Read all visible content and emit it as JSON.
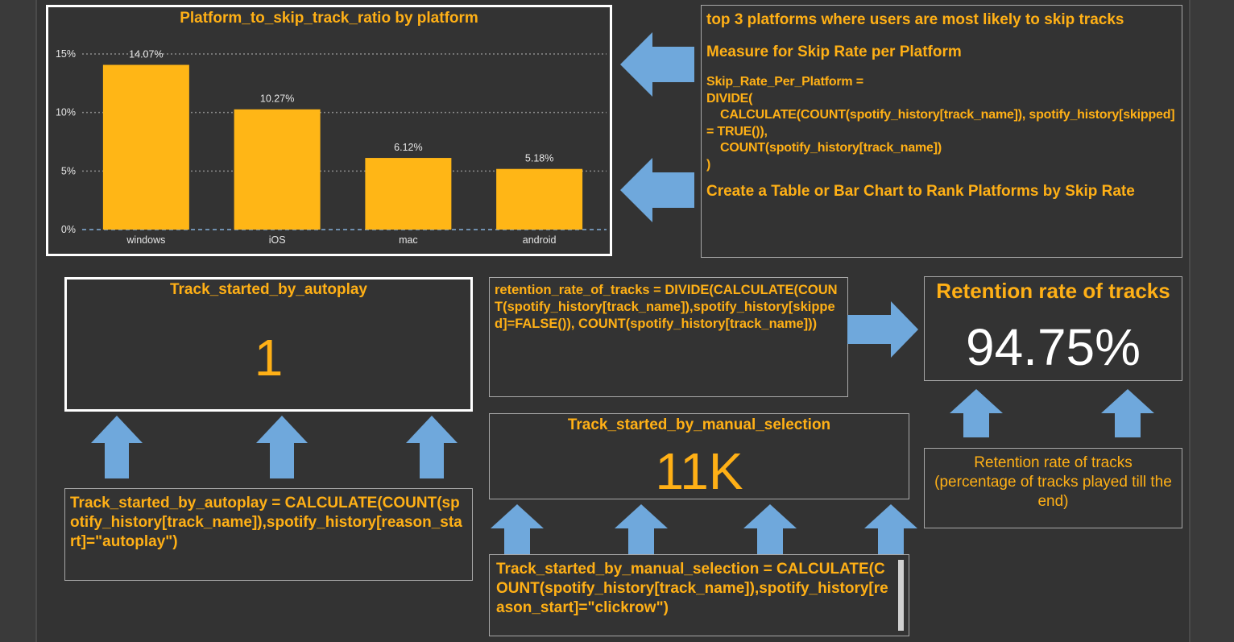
{
  "chart": {
    "title": "Platform_to_skip_track_ratio by platform"
  },
  "chart_data": {
    "type": "bar",
    "title": "Platform_to_skip_track_ratio by platform",
    "categories": [
      "windows",
      "iOS",
      "mac",
      "android"
    ],
    "values": [
      14.07,
      10.27,
      6.12,
      5.18
    ],
    "data_labels": [
      "14.07%",
      "10.27%",
      "6.12%",
      "5.18%"
    ],
    "yticks": [
      "0%",
      "5%",
      "10%",
      "15%"
    ],
    "ylim": [
      0,
      15
    ],
    "grid": true,
    "color": "#ffb616"
  },
  "skip_note": {
    "heading": "top 3 platforms where users are most likely to skip tracks",
    "measure_heading": "Measure for Skip Rate per Platform",
    "code": "Skip_Rate_Per_Platform = \nDIVIDE(\n    CALCULATE(COUNT(spotify_history[track_name]), spotify_history[skipped] = TRUE()),\n    COUNT(spotify_history[track_name])\n)",
    "footer": "Create a Table or Bar Chart to Rank Platforms by Skip Rate"
  },
  "autoplay_card": {
    "title": "Track_started_by_autoplay",
    "value": "1"
  },
  "autoplay_formula": "Track_started_by_autoplay = CALCULATE(COUNT(spotify_history[track_name]),spotify_history[reason_start]=\"autoplay\")",
  "retention_formula": "retention_rate_of_tracks = DIVIDE(CALCULATE(COUNT(spotify_history[track_name]),spotify_history[skipped]=FALSE()), COUNT(spotify_history[track_name]))",
  "retention_card": {
    "title": "Retention rate of tracks",
    "value": "94.75%"
  },
  "retention_note": "Retention rate of tracks (percentage of tracks played till the end)",
  "manual_card": {
    "title": "Track_started_by_manual_selection",
    "value": "11K"
  },
  "manual_formula": "Track_started_by_manual_selection = CALCULATE(COUNT(spotify_history[track_name]),spotify_history[reason_start]=\"clickrow\")",
  "colors": {
    "accent": "#ffb016",
    "arrow": "#6fa8dc",
    "background": "#333333"
  }
}
